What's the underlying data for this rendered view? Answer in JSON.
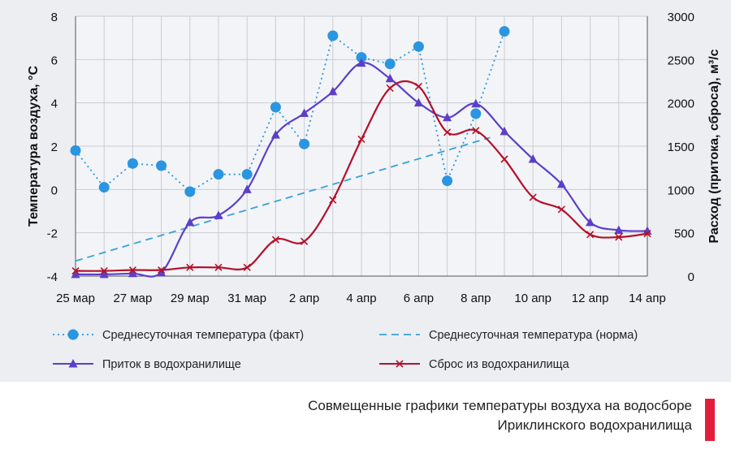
{
  "chart_data": {
    "type": "line",
    "ylabel_left": "Температура воздуха, °С",
    "ylabel_right": "Расход (притока, сброса), м³/с",
    "ylim_left": [
      -4,
      8
    ],
    "ylim_right": [
      0,
      3000
    ],
    "yticks_left": [
      "-4",
      "-2",
      "0",
      "2",
      "4",
      "6",
      "8"
    ],
    "yticks_right": [
      "0",
      "500",
      "1000",
      "1500",
      "2000",
      "2500",
      "3000"
    ],
    "x_start_day": 0,
    "x_end_day": 20,
    "xticks": [
      {
        "day": 0,
        "label": "25 мар"
      },
      {
        "day": 2,
        "label": "27 мар"
      },
      {
        "day": 4,
        "label": "29 мар"
      },
      {
        "day": 6,
        "label": "31 мар"
      },
      {
        "day": 8,
        "label": "2 апр"
      },
      {
        "day": 10,
        "label": "4 апр"
      },
      {
        "day": 12,
        "label": "6 апр"
      },
      {
        "day": 14,
        "label": "8 апр"
      },
      {
        "day": 16,
        "label": "10 апр"
      },
      {
        "day": 18,
        "label": "12 апр"
      },
      {
        "day": 20,
        "label": "14 апр"
      }
    ],
    "grid": true,
    "legend_position": "bottom",
    "series": [
      {
        "name": "Среднесуточная температура (факт)",
        "axis": "left",
        "color": "#2a95e0",
        "style": "dotted",
        "marker": "circle",
        "x": [
          0,
          1,
          2,
          3,
          4,
          5,
          6,
          7,
          8,
          9,
          10,
          11,
          12,
          13,
          14,
          15
        ],
        "values": [
          1.8,
          0.1,
          1.2,
          1.1,
          -0.1,
          0.7,
          0.7,
          3.8,
          2.1,
          7.1,
          6.1,
          5.8,
          6.6,
          0.4,
          3.5,
          7.3
        ]
      },
      {
        "name": "Среднесуточная температура (норма)",
        "axis": "left",
        "color": "#38a2d4",
        "style": "dashed",
        "marker": "none",
        "x": [
          0,
          14.5
        ],
        "values": [
          -3.3,
          2.4
        ]
      },
      {
        "name": "Приток в водохранилище",
        "axis": "right",
        "color": "#5c3fc8",
        "style": "solid",
        "marker": "triangle",
        "x": [
          0,
          1,
          2,
          3,
          4,
          5,
          6,
          7,
          8,
          9,
          10,
          11,
          12,
          13,
          14,
          15,
          16,
          17,
          18,
          19,
          20
        ],
        "values": [
          20,
          20,
          30,
          40,
          620,
          700,
          1000,
          1630,
          1880,
          2130,
          2460,
          2280,
          2000,
          1830,
          1990,
          1670,
          1350,
          1060,
          620,
          530,
          520
        ]
      },
      {
        "name": "Сброс из водохранилища",
        "axis": "right",
        "color": "#b4102a",
        "style": "solid",
        "marker": "x",
        "x": [
          0,
          1,
          2,
          3,
          4,
          5,
          6,
          7,
          8,
          9,
          10,
          11,
          12,
          13,
          14,
          15,
          16,
          17,
          18,
          19,
          20
        ],
        "values": [
          60,
          60,
          70,
          70,
          100,
          100,
          100,
          420,
          400,
          880,
          1580,
          2170,
          2190,
          1660,
          1680,
          1350,
          910,
          770,
          480,
          450,
          490
        ]
      }
    ]
  },
  "caption": {
    "line1": "Совмещенные графики температуры воздуха на водосборе",
    "line2": "Ириклинского водохранилища",
    "accent_color": "#e31e3a"
  }
}
